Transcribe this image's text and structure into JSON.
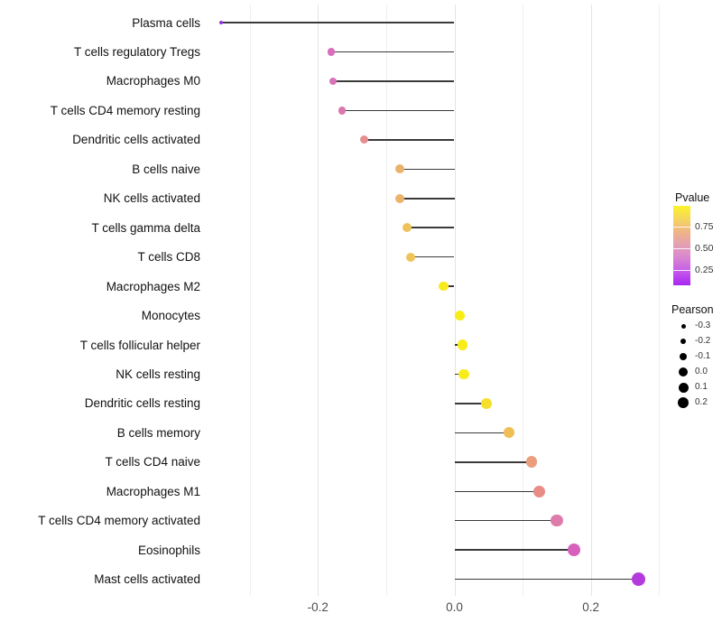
{
  "chart_data": {
    "type": "lollipop",
    "title": "",
    "xlabel": "",
    "ylabel": "",
    "xlim": [
      -0.38,
      0.32
    ],
    "grid": "vertical-only",
    "x_ticks": [
      {
        "value": -0.2,
        "label": "-0.2"
      },
      {
        "value": 0.0,
        "label": "0.0"
      },
      {
        "value": 0.2,
        "label": "0.2"
      }
    ],
    "gridline_values": [
      -0.3,
      -0.2,
      -0.1,
      0.0,
      0.1,
      0.2,
      0.3
    ],
    "stem_color": "#3a3a3a",
    "points": [
      {
        "label": "Plasma cells",
        "pearson": -0.342,
        "size": 4.5,
        "color": "#9632DC"
      },
      {
        "label": "T cells regulatory  Tregs",
        "pearson": -0.18,
        "size": 8.2,
        "color": "#D76FBB"
      },
      {
        "label": "Macrophages M0",
        "pearson": -0.178,
        "size": 8.2,
        "color": "#D873B6"
      },
      {
        "label": "T cells CD4 memory resting",
        "pearson": -0.165,
        "size": 8.6,
        "color": "#DB78AE"
      },
      {
        "label": "Dendritic cells activated",
        "pearson": -0.132,
        "size": 9.1,
        "color": "#E58E90"
      },
      {
        "label": "B cells naive",
        "pearson": -0.08,
        "size": 9.9,
        "color": "#EAB36C"
      },
      {
        "label": "NK cells activated",
        "pearson": -0.08,
        "size": 9.9,
        "color": "#EAB46B"
      },
      {
        "label": "T cells gamma delta",
        "pearson": -0.07,
        "size": 10.1,
        "color": "#EEC25B"
      },
      {
        "label": "T cells CD8",
        "pearson": -0.064,
        "size": 10.2,
        "color": "#EFC45A"
      },
      {
        "label": "Macrophages M2",
        "pearson": -0.016,
        "size": 10.9,
        "color": "#F7EB1E"
      },
      {
        "label": "Monocytes",
        "pearson": 0.008,
        "size": 11.2,
        "color": "#F9EE14"
      },
      {
        "label": "T cells follicular helper",
        "pearson": 0.012,
        "size": 11.3,
        "color": "#F8ED19"
      },
      {
        "label": "NK cells resting",
        "pearson": 0.014,
        "size": 11.3,
        "color": "#F8ED1B"
      },
      {
        "label": "Dendritic cells resting",
        "pearson": 0.047,
        "size": 11.8,
        "color": "#F4E02C"
      },
      {
        "label": "B cells memory",
        "pearson": 0.08,
        "size": 12.3,
        "color": "#EFBE55"
      },
      {
        "label": "T cells CD4 naive",
        "pearson": 0.113,
        "size": 12.8,
        "color": "#EB9E7E"
      },
      {
        "label": "Macrophages M1",
        "pearson": 0.124,
        "size": 13.0,
        "color": "#E88C86"
      },
      {
        "label": "T cells CD4 memory activated",
        "pearson": 0.15,
        "size": 13.4,
        "color": "#DD7BAB"
      },
      {
        "label": "Eosinophils",
        "pearson": 0.175,
        "size": 13.8,
        "color": "#D760BD"
      },
      {
        "label": "Mast cells activated",
        "pearson": 0.27,
        "size": 15.5,
        "color": "#B43BDB"
      }
    ],
    "legends": {
      "pvalue": {
        "title": "Pvalue",
        "tick_labels": [
          "0.75",
          "0.50",
          "0.25"
        ],
        "gradient_top_to_bottom": [
          "#FBF32A",
          "#F5D55E",
          "#EFB388",
          "#E29FB5",
          "#D883D3",
          "#C457EA",
          "#A826F2"
        ]
      },
      "pearson": {
        "title": "Pearson",
        "entries": [
          {
            "label": "-0.3",
            "size": 5.0
          },
          {
            "label": "-0.2",
            "size": 6.8
          },
          {
            "label": "-0.1",
            "size": 8.5
          },
          {
            "label": "0.0",
            "size": 10.0
          },
          {
            "label": "0.1",
            "size": 11.0
          },
          {
            "label": "0.2",
            "size": 12.3
          }
        ]
      }
    }
  }
}
